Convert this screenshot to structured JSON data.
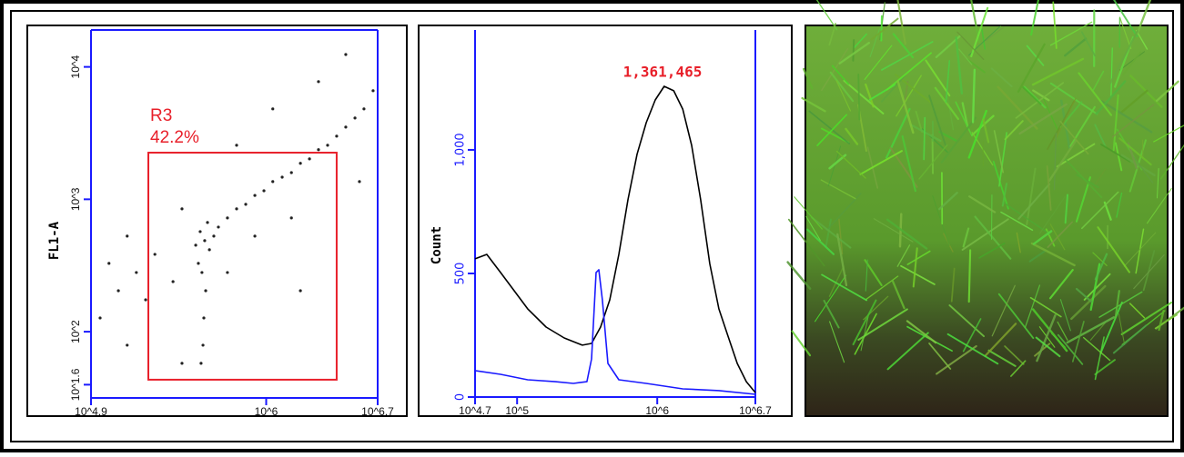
{
  "chart_data": [
    {
      "type": "scatter",
      "y_label": "FL1-A",
      "color": "#222222",
      "axis_color": "#1a1aff",
      "xscale": "log",
      "yscale": "log",
      "xlim": [
        79433,
        5011872
      ],
      "ylim": [
        31.6,
        19000
      ],
      "xticks": [
        {
          "value": 79433,
          "label": "10^4.9"
        },
        {
          "value": 1000000,
          "label": "10^6"
        },
        {
          "value": 5011872,
          "label": "10^6.7"
        }
      ],
      "yticks": [
        {
          "value": 39.8,
          "label": "10^1.6"
        },
        {
          "value": 100,
          "label": "10^2"
        },
        {
          "value": 1000,
          "label": "10^3"
        },
        {
          "value": 10000,
          "label": "10^4"
        }
      ],
      "x": [
        411000,
        385000,
        440000,
        375000,
        428000,
        469000,
        361000,
        395000,
        417000,
        406000,
        401000,
        390000,
        501000,
        571000,
        652000,
        744000,
        849000,
        968000,
        1100000,
        1260000,
        1440000,
        1640000,
        1870000,
        2130000,
        2430000,
        2770000,
        3160000,
        3610000,
        4110000,
        4690000,
        153000,
        118000,
        103000,
        134000,
        200000,
        175000,
        260000,
        296000,
        571000,
        849000,
        1440000,
        1100000,
        2130000,
        3160000,
        652000,
        1640000,
        296000,
        134000,
        90600,
        3850000
      ],
      "y": [
        487,
        570,
        416,
        328,
        668,
        527,
        450,
        280,
        204,
        127,
        79.1,
        57.7,
        617,
        723,
        847,
        916,
        1070,
        1160,
        1360,
        1470,
        1590,
        1870,
        2020,
        2370,
        2560,
        3000,
        3510,
        4110,
        4820,
        6610,
        280,
        204,
        328,
        527,
        384,
        174,
        239,
        847,
        280,
        527,
        723,
        4820,
        7740,
        12400,
        2560,
        204,
        57.7,
        79.1,
        127,
        1360
      ],
      "gate": {
        "label": "R3",
        "percent": "42.2%",
        "color": "#e8202a",
        "x": [
          182000,
          2770000
        ],
        "y": [
          43.4,
          2250
        ]
      }
    },
    {
      "type": "line",
      "y_label": "Count",
      "annotation": "1,361,465",
      "axis_color": "#1a1aff",
      "xscale": "log",
      "xlim": [
        50119,
        5011872
      ],
      "ylim": [
        0,
        1485
      ],
      "xticks": [
        {
          "value": 50119,
          "label": "10^4.7"
        },
        {
          "value": 100000,
          "label": "10^5"
        },
        {
          "value": 1000000,
          "label": "10^6"
        },
        {
          "value": 5011872,
          "label": "10^6.7"
        }
      ],
      "yticks": [
        0,
        500,
        {
          "value": 1000,
          "label": "1,000"
        }
      ],
      "series": [
        {
          "color": "#000000",
          "x": [
            50119,
            60800,
            76200,
            95300,
            119000,
            161000,
            217000,
            292000,
            340000,
            394000,
            458000,
            532000,
            618000,
            718000,
            834000,
            968000,
            1120000,
            1310000,
            1520000,
            1760000,
            2040000,
            2370000,
            2750000,
            3200000,
            3720000,
            4320000,
            5011872
          ],
          "values": [
            559,
            577,
            504,
            430,
            357,
            283,
            239,
            210,
            217,
            283,
            393,
            577,
            798,
            982,
            1110,
            1202,
            1257,
            1239,
            1165,
            1018,
            798,
            540,
            357,
            246,
            136,
            62,
            18
          ]
        },
        {
          "color": "#1a1aff",
          "x": [
            50119,
            76200,
            119000,
            187000,
            252000,
            315000,
            340000,
            366000,
            383000,
            406000,
            445000,
            532000,
            834000,
            1520000,
            2750000,
            5011872
          ],
          "values": [
            107,
            92,
            70,
            62,
            55,
            62,
            154,
            504,
            515,
            393,
            136,
            70,
            55,
            33,
            26,
            11
          ]
        }
      ]
    }
  ]
}
